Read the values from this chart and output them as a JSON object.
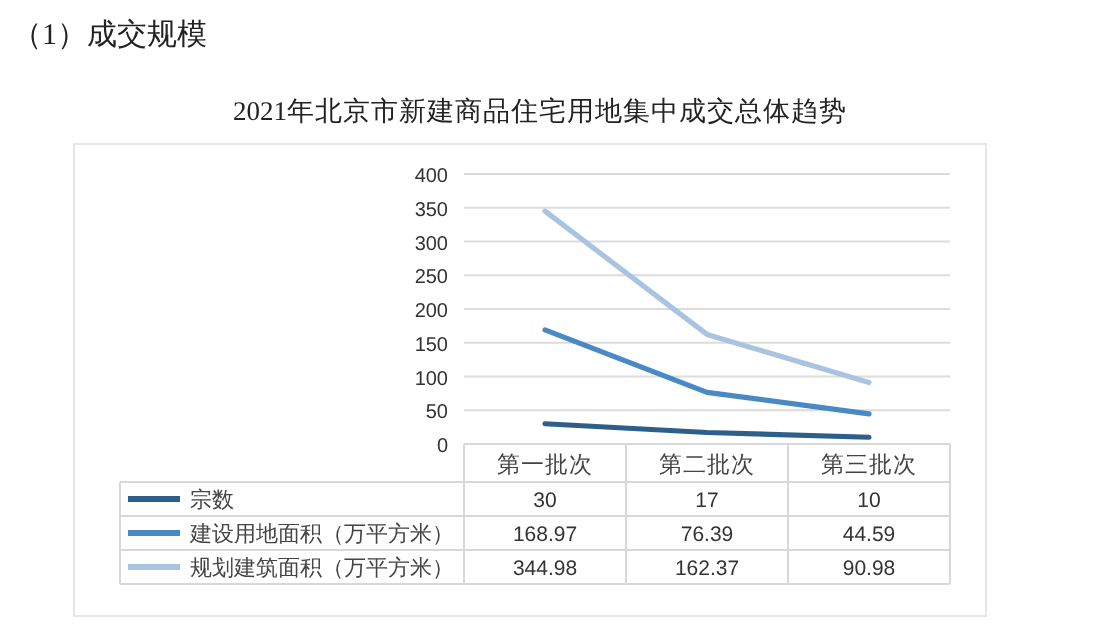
{
  "chart_data": {
    "type": "line",
    "title": "2021年北京市新建商品住宅用地集中成交总体趋势",
    "annotations": [
      "（1）成交规模"
    ],
    "categories": [
      "第一批次",
      "第二批次",
      "第三批次"
    ],
    "series": [
      {
        "name": "宗数",
        "color": "#2e5f8a",
        "values": [
          30,
          17,
          10
        ]
      },
      {
        "name": "建设用地面积（万平方米）",
        "color": "#4a8ac4",
        "values": [
          168.97,
          76.39,
          44.59
        ]
      },
      {
        "name": "规划建筑面积（万平方米）",
        "color": "#a9c4e0",
        "values": [
          344.98,
          162.37,
          90.98
        ]
      }
    ],
    "ylim": [
      0,
      400
    ],
    "yticks": [
      0,
      50,
      100,
      150,
      200,
      250,
      300,
      350,
      400
    ],
    "grid": "y",
    "legend": "bottom",
    "data_labels": true
  }
}
